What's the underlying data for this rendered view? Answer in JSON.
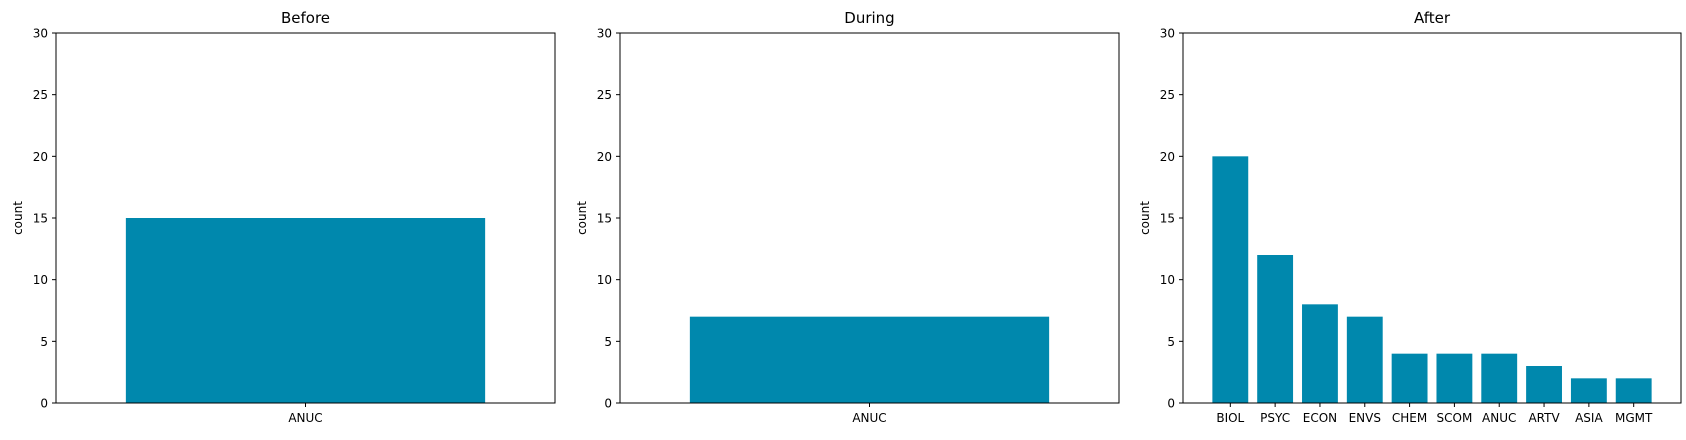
{
  "colors": {
    "bar": "#0088ad",
    "axis": "#000000",
    "background": "#ffffff"
  },
  "chart_data": [
    {
      "type": "bar",
      "title": "Before",
      "ylabel": "count",
      "xlabel": "",
      "ylim": [
        0,
        30
      ],
      "yticks": [
        0,
        5,
        10,
        15,
        20,
        25,
        30
      ],
      "grid": false,
      "categories": [
        "ANUC"
      ],
      "values": [
        15
      ]
    },
    {
      "type": "bar",
      "title": "During",
      "ylabel": "count",
      "xlabel": "",
      "ylim": [
        0,
        30
      ],
      "yticks": [
        0,
        5,
        10,
        15,
        20,
        25,
        30
      ],
      "grid": false,
      "categories": [
        "ANUC"
      ],
      "values": [
        7
      ]
    },
    {
      "type": "bar",
      "title": "After",
      "ylabel": "count",
      "xlabel": "",
      "ylim": [
        0,
        30
      ],
      "yticks": [
        0,
        5,
        10,
        15,
        20,
        25,
        30
      ],
      "grid": false,
      "categories": [
        "BIOL",
        "PSYC",
        "ECON",
        "ENVS",
        "CHEM",
        "SCOM",
        "ANUC",
        "ARTV",
        "ASIA",
        "MGMT"
      ],
      "values": [
        20,
        12,
        8,
        7,
        4,
        4,
        4,
        3,
        2,
        2
      ]
    }
  ]
}
